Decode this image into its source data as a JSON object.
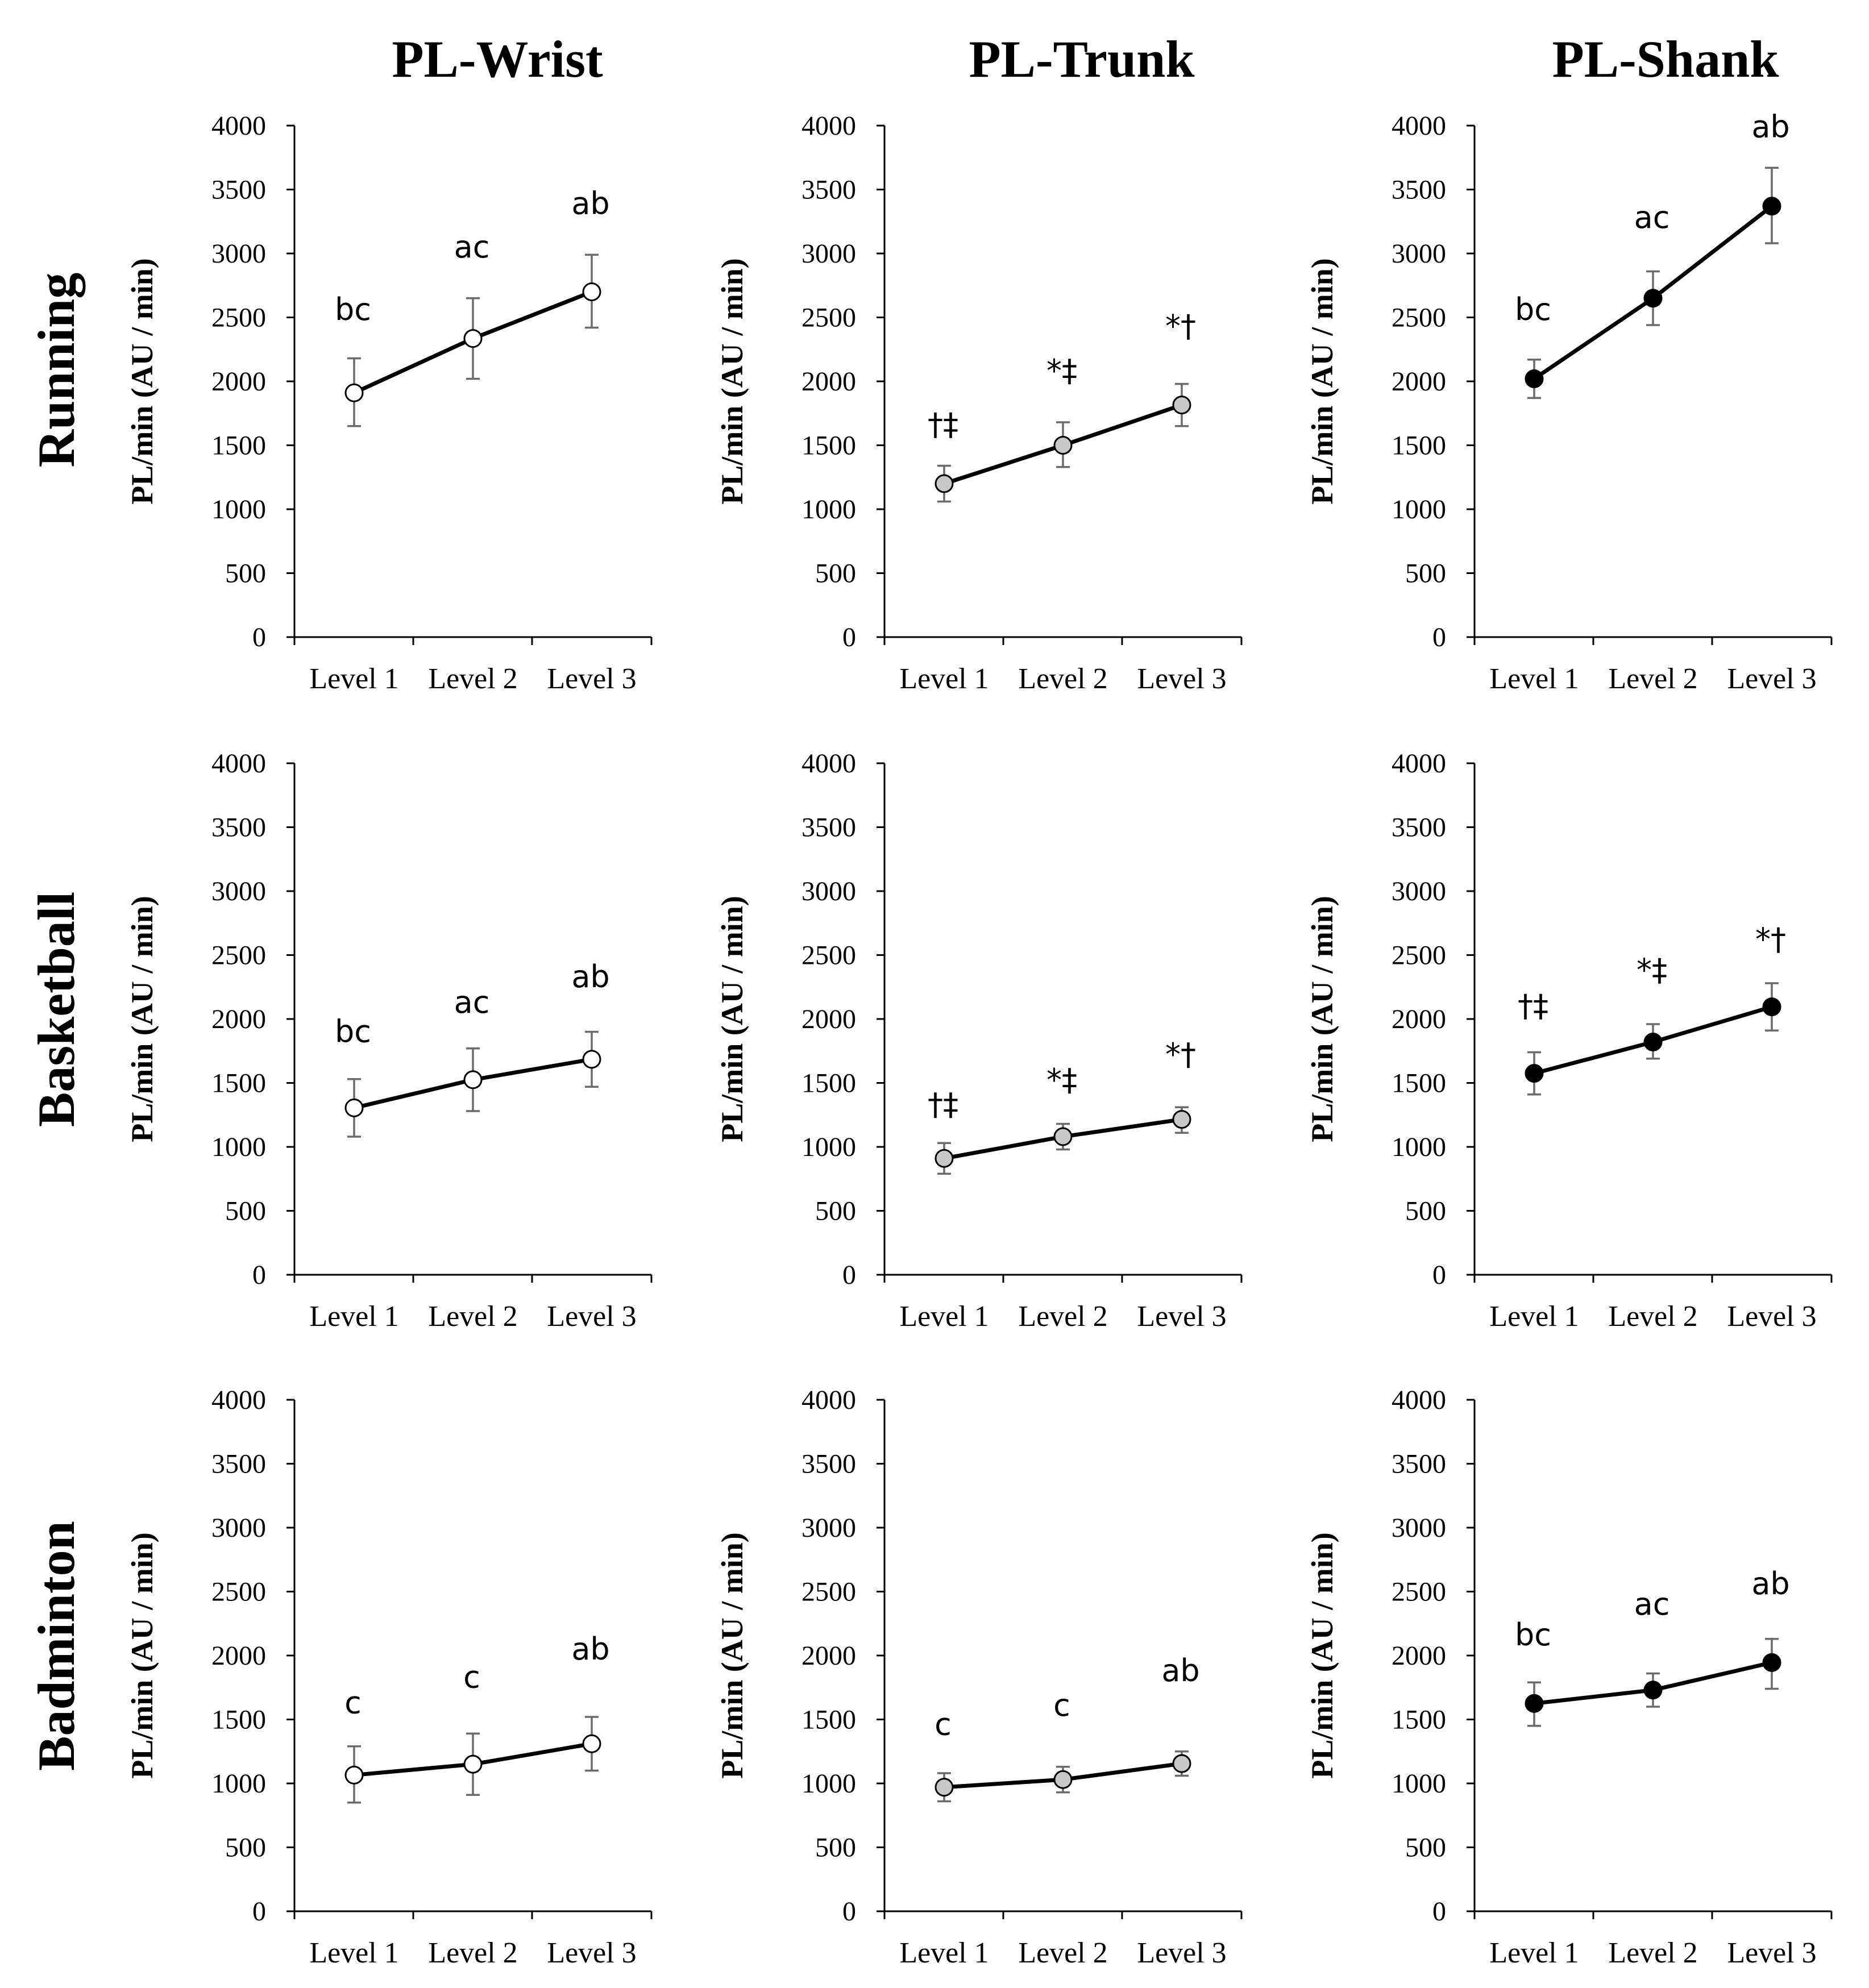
{
  "chart_data": {
    "type": "line",
    "ylabel": "PL/min (AU / min)",
    "ylim": [
      0,
      4000
    ],
    "yticks": [
      0,
      500,
      1000,
      1500,
      2000,
      2500,
      3000,
      3500,
      4000
    ],
    "categories": [
      "Level 1",
      "Level 2",
      "Level 3"
    ],
    "columns": [
      "PL-Wrist",
      "PL-Trunk",
      "PL-Shank"
    ],
    "rows": [
      "Running",
      "Basketball",
      "Badminton"
    ],
    "marker_colors": [
      "#ffffff",
      "#c8c8c8",
      "#000000"
    ],
    "panels": [
      {
        "row": 0,
        "col": 0,
        "values": [
          1910,
          2335,
          2700
        ],
        "err_low": [
          1650,
          2020,
          2420
        ],
        "err_high": [
          2180,
          2650,
          2990
        ],
        "annotations": [
          "bc",
          "ac",
          "ab"
        ],
        "annotation_y": [
          2560,
          3050,
          3390
        ]
      },
      {
        "row": 0,
        "col": 1,
        "values": [
          1200,
          1500,
          1815
        ],
        "err_low": [
          1060,
          1330,
          1650
        ],
        "err_high": [
          1340,
          1680,
          1980
        ],
        "annotations": [
          "†‡",
          "*‡",
          "*†"
        ],
        "annotation_y": [
          1660,
          2080,
          2430
        ]
      },
      {
        "row": 0,
        "col": 2,
        "values": [
          2020,
          2650,
          3370
        ],
        "err_low": [
          1870,
          2440,
          3080
        ],
        "err_high": [
          2170,
          2860,
          3670
        ],
        "annotations": [
          "bc",
          "ac",
          "ab"
        ],
        "annotation_y": [
          2560,
          3280,
          3990
        ]
      },
      {
        "row": 1,
        "col": 0,
        "values": [
          1305,
          1525,
          1685
        ],
        "err_low": [
          1080,
          1280,
          1470
        ],
        "err_high": [
          1530,
          1770,
          1900
        ],
        "annotations": [
          "bc",
          "ac",
          "ab"
        ],
        "annotation_y": [
          1900,
          2130,
          2330
        ]
      },
      {
        "row": 1,
        "col": 1,
        "values": [
          910,
          1080,
          1215
        ],
        "err_low": [
          790,
          980,
          1110
        ],
        "err_high": [
          1030,
          1180,
          1310
        ],
        "annotations": [
          "†‡",
          "*‡",
          "*†"
        ],
        "annotation_y": [
          1330,
          1520,
          1720
        ]
      },
      {
        "row": 1,
        "col": 2,
        "values": [
          1575,
          1820,
          2095
        ],
        "err_low": [
          1410,
          1690,
          1910
        ],
        "err_high": [
          1740,
          1960,
          2280
        ],
        "annotations": [
          "†‡",
          "*‡",
          "*†"
        ],
        "annotation_y": [
          2100,
          2380,
          2620
        ]
      },
      {
        "row": 2,
        "col": 0,
        "values": [
          1065,
          1150,
          1310
        ],
        "err_low": [
          850,
          910,
          1100
        ],
        "err_high": [
          1290,
          1390,
          1520
        ],
        "annotations": [
          "c",
          "c",
          "ab"
        ],
        "annotation_y": [
          1630,
          1830,
          2050
        ]
      },
      {
        "row": 2,
        "col": 1,
        "values": [
          970,
          1030,
          1155
        ],
        "err_low": [
          860,
          930,
          1060
        ],
        "err_high": [
          1080,
          1130,
          1250
        ],
        "annotations": [
          "c",
          "c",
          "ab"
        ],
        "annotation_y": [
          1460,
          1610,
          1880
        ]
      },
      {
        "row": 2,
        "col": 2,
        "values": [
          1625,
          1730,
          1945
        ],
        "err_low": [
          1450,
          1600,
          1740
        ],
        "err_high": [
          1790,
          1860,
          2130
        ],
        "annotations": [
          "bc",
          "ac",
          "ab"
        ],
        "annotation_y": [
          2160,
          2400,
          2560
        ]
      }
    ]
  }
}
